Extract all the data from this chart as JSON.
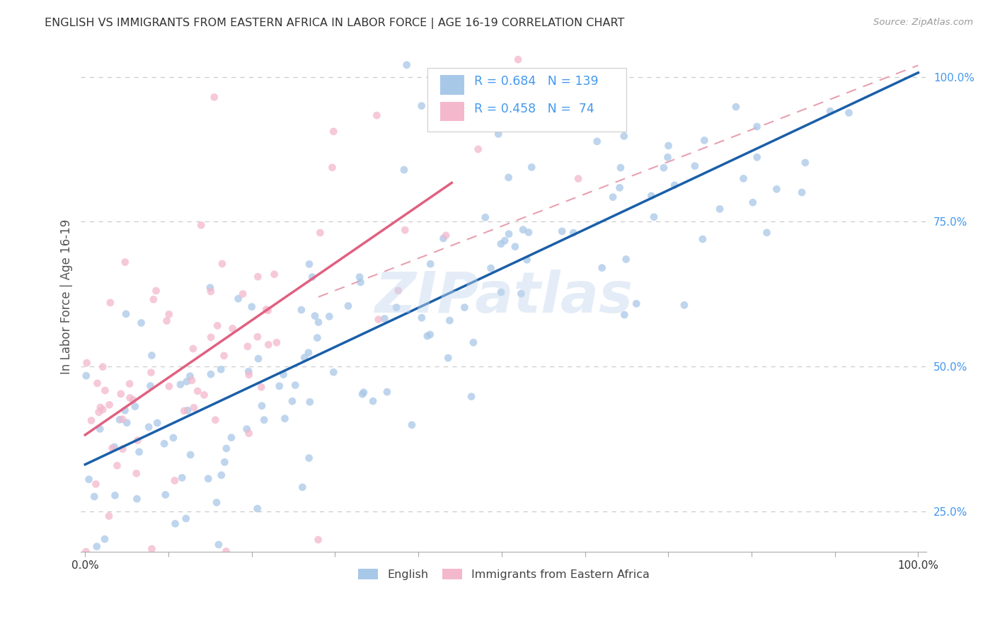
{
  "title": "ENGLISH VS IMMIGRANTS FROM EASTERN AFRICA IN LABOR FORCE | AGE 16-19 CORRELATION CHART",
  "source": "Source: ZipAtlas.com",
  "ylabel": "In Labor Force | Age 16-19",
  "blue_color": "#a8c8e8",
  "pink_color": "#f4b8cc",
  "blue_line_color": "#1a5fa8",
  "pink_line_color": "#e06080",
  "dashed_line_color": "#e8a0b0",
  "legend_blue_R": "0.684",
  "legend_blue_N": "139",
  "legend_pink_R": "0.458",
  "legend_pink_N": " 74",
  "legend_label_blue": "English",
  "legend_label_pink": "Immigrants from Eastern Africa",
  "watermark": "ZIPatlas",
  "title_color": "#333333",
  "axis_label_color": "#555555",
  "right_tick_color": "#4499ee",
  "blue_R": 0.684,
  "pink_R": 0.458,
  "blue_N": 139,
  "pink_N": 74,
  "blue_line_start_y": 0.33,
  "blue_line_end_y": 1.0,
  "pink_line_x0": 0.0,
  "pink_line_y0": 0.36,
  "pink_line_x1": 0.42,
  "pink_line_y1": 0.8,
  "dash_line_x0": 0.28,
  "dash_line_y0": 0.62,
  "dash_line_x1": 1.0,
  "dash_line_y1": 1.02,
  "y_min": 0.18,
  "y_max": 1.06,
  "x_min": -0.005,
  "x_max": 1.01
}
